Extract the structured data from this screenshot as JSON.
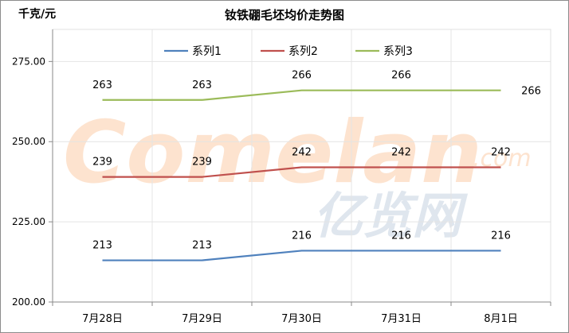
{
  "unit_label": "千克/元",
  "watermark": {
    "brand": "Comelan",
    "domain": ".com",
    "cn": "亿览网"
  },
  "chart_data": {
    "type": "line",
    "title": "钕铁硼毛坯均价走势图",
    "categories": [
      "7月28日",
      "7月29日",
      "7月30日",
      "7月31日",
      "8月1日"
    ],
    "ylim": [
      200,
      285
    ],
    "yticks": [
      "200.00",
      "225.00",
      "250.00",
      "275.00"
    ],
    "ytick_values": [
      200,
      225,
      250,
      275
    ],
    "grid": true,
    "legend_position": "top-center",
    "series": [
      {
        "name": "系列1",
        "values": [
          213,
          213,
          216,
          216,
          216
        ],
        "color": "#4f81bd"
      },
      {
        "name": "系列2",
        "values": [
          239,
          239,
          242,
          242,
          242
        ],
        "color": "#c0504d"
      },
      {
        "name": "系列3",
        "values": [
          263,
          263,
          266,
          266,
          266
        ],
        "color": "#9bbb59"
      }
    ]
  }
}
